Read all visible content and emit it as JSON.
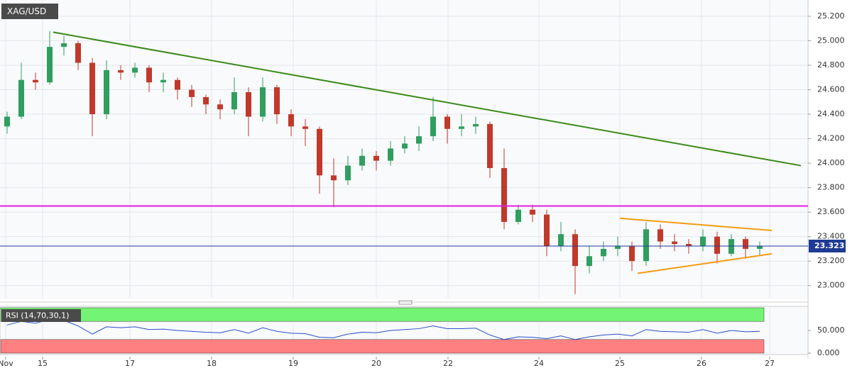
{
  "chart_data": [
    {
      "type": "candlestick",
      "title": "XAG/USD",
      "open": [
        24.3,
        24.38,
        24.68,
        24.66,
        24.95,
        24.98,
        24.82,
        24.4,
        24.76,
        24.74,
        24.78,
        24.66,
        24.68,
        24.6,
        24.54,
        24.48,
        24.44,
        24.58,
        24.38,
        24.62,
        24.4,
        24.3,
        24.28,
        23.9,
        23.86,
        23.98,
        24.06,
        24.02,
        24.12,
        24.16,
        24.22,
        24.38,
        24.28,
        24.3,
        24.32,
        23.96,
        23.52,
        23.62,
        23.58,
        23.32,
        23.42,
        23.16,
        23.24,
        23.3,
        23.32,
        23.2,
        23.46,
        23.36,
        23.34,
        23.32,
        23.4,
        23.26,
        23.38,
        23.3
      ],
      "high": [
        24.42,
        24.82,
        24.74,
        25.08,
        25.04,
        25.0,
        24.86,
        24.84,
        24.8,
        24.82,
        24.8,
        24.74,
        24.7,
        24.64,
        24.56,
        24.52,
        24.7,
        24.62,
        24.7,
        24.64,
        24.44,
        24.36,
        24.3,
        24.04,
        24.06,
        24.12,
        24.1,
        24.18,
        24.22,
        24.3,
        24.54,
        24.4,
        24.4,
        24.38,
        24.34,
        24.12,
        23.66,
        23.66,
        23.62,
        23.52,
        23.46,
        23.32,
        23.36,
        23.4,
        23.36,
        23.52,
        23.5,
        23.42,
        23.38,
        23.46,
        23.44,
        23.42,
        23.4,
        23.36
      ],
      "low": [
        24.24,
        24.36,
        24.6,
        24.64,
        24.88,
        24.76,
        24.22,
        24.36,
        24.68,
        24.7,
        24.58,
        24.58,
        24.52,
        24.46,
        24.4,
        24.36,
        24.4,
        24.22,
        24.34,
        24.32,
        24.22,
        24.14,
        23.75,
        23.64,
        23.82,
        23.94,
        23.94,
        23.98,
        24.08,
        24.1,
        24.18,
        24.16,
        24.22,
        24.24,
        23.88,
        23.46,
        23.5,
        23.52,
        23.24,
        23.28,
        22.93,
        23.1,
        23.2,
        23.24,
        23.12,
        23.16,
        23.3,
        23.28,
        23.26,
        23.28,
        23.18,
        23.24,
        23.22,
        23.24
      ],
      "close": [
        24.38,
        24.68,
        24.66,
        24.95,
        24.98,
        24.82,
        24.4,
        24.76,
        24.74,
        24.78,
        24.66,
        24.68,
        24.6,
        24.54,
        24.48,
        24.44,
        24.58,
        24.38,
        24.62,
        24.4,
        24.3,
        24.28,
        23.9,
        23.86,
        23.98,
        24.06,
        24.02,
        24.12,
        24.16,
        24.22,
        24.38,
        24.28,
        24.3,
        24.32,
        23.96,
        23.52,
        23.62,
        23.58,
        23.32,
        23.42,
        23.16,
        23.24,
        23.3,
        23.32,
        23.2,
        23.46,
        23.36,
        23.34,
        23.32,
        23.4,
        23.26,
        23.38,
        23.3,
        23.32
      ],
      "up_color": "#2f9e5f",
      "down_color": "#c0392b",
      "xlim": [
        -0.5,
        56.4
      ],
      "xticks": [
        {
          "value": -0.1,
          "label": "Nov"
        },
        {
          "value": 2.5,
          "label": "15"
        },
        {
          "value": 8.65,
          "label": "17"
        },
        {
          "value": 14.4,
          "label": "18"
        },
        {
          "value": 20.15,
          "label": "19"
        },
        {
          "value": 26,
          "label": "20"
        },
        {
          "value": 31.05,
          "label": "22"
        },
        {
          "value": 37.45,
          "label": "24"
        },
        {
          "value": 43.15,
          "label": "25"
        },
        {
          "value": 48.9,
          "label": "26"
        },
        {
          "value": 53.7,
          "label": "27"
        }
      ],
      "ylim": [
        22.9,
        25.333
      ],
      "yticks": [
        {
          "value": 23,
          "label": "23.000"
        },
        {
          "value": 23.2,
          "label": "23.200"
        },
        {
          "value": 23.4,
          "label": "23.400"
        },
        {
          "value": 23.6,
          "label": "23.600"
        },
        {
          "value": 23.8,
          "label": "23.800"
        },
        {
          "value": 24,
          "label": "24.000"
        },
        {
          "value": 24.2,
          "label": "24.200"
        },
        {
          "value": 24.4,
          "label": "24.400"
        },
        {
          "value": 24.6,
          "label": "24.600"
        },
        {
          "value": 24.8,
          "label": "24.800"
        },
        {
          "value": 25,
          "label": "25.000"
        },
        {
          "value": 25.2,
          "label": "25.200"
        }
      ],
      "grid": true,
      "trendlines": [
        {
          "color": "#3a8a1a",
          "x": [
            3.25,
            55.9
          ],
          "y": [
            25.07,
            23.98
          ]
        },
        {
          "color": "#f39c12",
          "x": [
            43.15,
            53.85
          ],
          "y": [
            23.55,
            23.45
          ]
        },
        {
          "color": "#f39c12",
          "x": [
            44.4,
            53.85
          ],
          "y": [
            23.1,
            23.26
          ]
        }
      ],
      "levels": [
        {
          "value": 23.65,
          "color": "#e01ee0"
        }
      ],
      "last_price": 23.323,
      "last_price_color": "#1f3a93"
    },
    {
      "type": "line",
      "title": "RSI (14,70,30,1)",
      "color": "#2a4fc9",
      "values": [
        62,
        70,
        66,
        74,
        72,
        60,
        42,
        58,
        56,
        58,
        52,
        53,
        50,
        48,
        46,
        45,
        52,
        44,
        56,
        48,
        44,
        43,
        35,
        34,
        42,
        46,
        45,
        50,
        52,
        54,
        60,
        54,
        54,
        55,
        40,
        30,
        36,
        35,
        32,
        38,
        30,
        36,
        40,
        42,
        38,
        52,
        48,
        47,
        46,
        52,
        44,
        50,
        47,
        48
      ],
      "ylim": [
        0,
        100
      ],
      "yticks": [
        {
          "value": 0,
          "label": "0.000"
        },
        {
          "value": 50,
          "label": "50.000"
        }
      ],
      "bands": [
        {
          "from": 70,
          "to": 100,
          "color": "#74f474"
        },
        {
          "from": 0,
          "to": 30,
          "color": "#ff8080"
        }
      ]
    }
  ]
}
